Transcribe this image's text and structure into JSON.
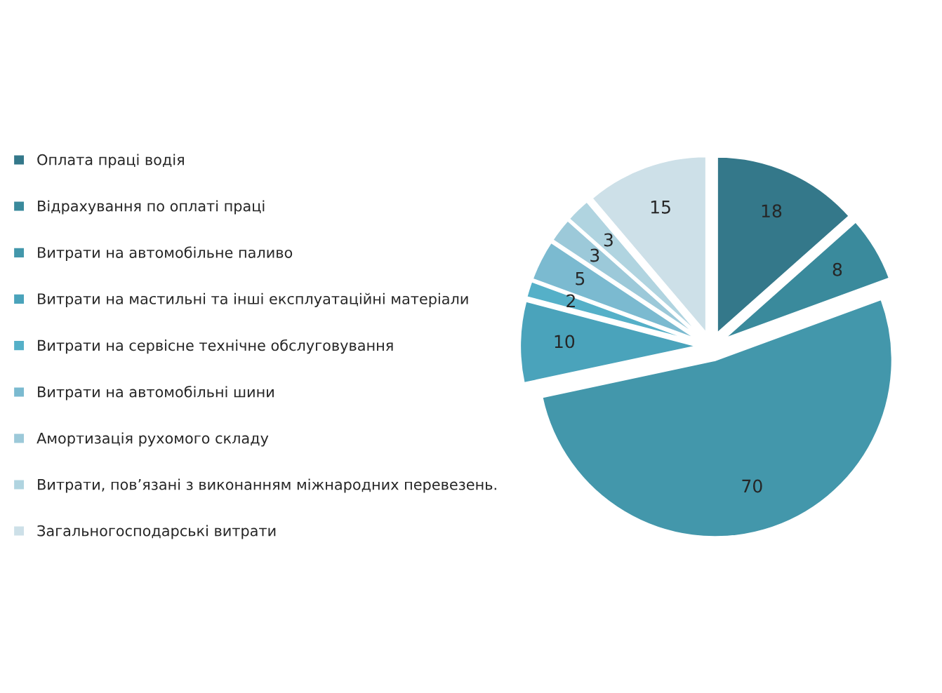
{
  "chart_data": {
    "type": "pie",
    "categories": [
      "Оплата праці водія",
      "Відрахування по оплаті праці",
      "Витрати на автомобільне паливо",
      "Витрати на мастильні та інші експлуатаційні матеріали",
      "Витрати на сервісне технічне обслуговування",
      "Витрати на автомобільні шини",
      "Амортизація рухомого складу",
      "Витрати, пов’язані з виконанням міжнародних перевезень.",
      "Загальногосподарські витрати"
    ],
    "values": [
      18,
      8,
      70,
      10,
      2,
      5,
      3,
      3,
      15
    ],
    "colors": [
      "#34788a",
      "#3a8a9c",
      "#4397ab",
      "#4aa3bb",
      "#55b0c8",
      "#7bbad0",
      "#9cc9d9",
      "#b0d4e0",
      "#cde0e8"
    ],
    "data_labels": true,
    "legend": "left"
  }
}
